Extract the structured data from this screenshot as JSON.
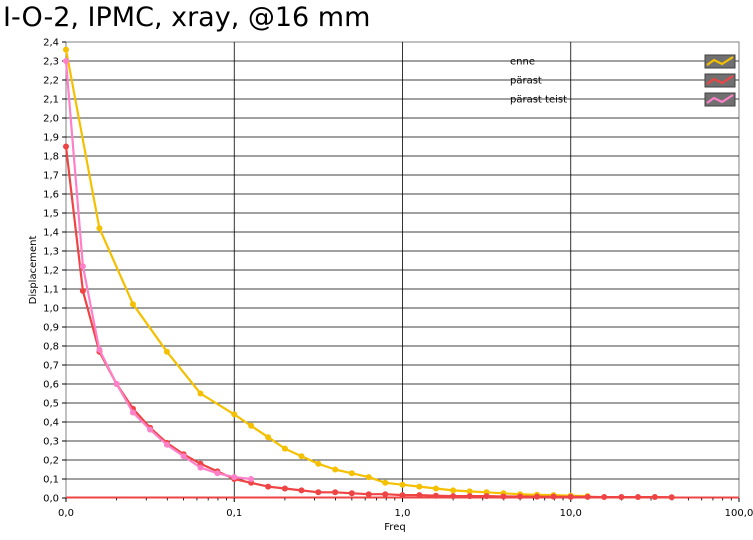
{
  "chart_data": {
    "type": "line",
    "title": "I-O-2, IPMC, xray, @16 mm",
    "xlabel": "Freq",
    "ylabel": "Displacement",
    "x_scale": "log",
    "xlim": [
      0.01,
      100
    ],
    "ylim": [
      0,
      2.4
    ],
    "grid": true,
    "legend_position": "top-right",
    "x_tick_labels": [
      "0,0",
      "0,1",
      "1,0",
      "10,0",
      "100,0"
    ],
    "y_tick_labels": [
      "0,0",
      "0,1",
      "0,2",
      "0,3",
      "0,4",
      "0,5",
      "0,6",
      "0,7",
      "0,8",
      "0,9",
      "1,0",
      "1,1",
      "1,2",
      "1,3",
      "1,4",
      "1,5",
      "1,6",
      "1,7",
      "1,8",
      "1,9",
      "2,0",
      "2,1",
      "2,2",
      "2,3",
      "2,4"
    ],
    "series": [
      {
        "name": "enne",
        "color": "#f5c000",
        "x": [
          0.01,
          0.0158,
          0.025,
          0.0398,
          0.063,
          0.1,
          0.126,
          0.159,
          0.2,
          0.251,
          0.316,
          0.398,
          0.5,
          0.63,
          0.79,
          1.0,
          1.26,
          1.58,
          2.0,
          2.51,
          3.16,
          3.98,
          5.0,
          6.3,
          7.9,
          10.0,
          12.6
        ],
        "y": [
          2.36,
          1.42,
          1.02,
          0.77,
          0.55,
          0.44,
          0.38,
          0.32,
          0.26,
          0.22,
          0.18,
          0.15,
          0.13,
          0.11,
          0.08,
          0.07,
          0.06,
          0.05,
          0.04,
          0.035,
          0.03,
          0.025,
          0.02,
          0.017,
          0.015,
          0.012,
          0.01
        ]
      },
      {
        "name": "pärast",
        "color": "#ee4444",
        "x": [
          0.01,
          0.0126,
          0.0158,
          0.02,
          0.025,
          0.0316,
          0.0398,
          0.05,
          0.063,
          0.0794,
          0.1,
          0.126,
          0.159,
          0.2,
          0.251,
          0.316,
          0.398,
          0.5,
          0.63,
          0.79,
          1.0,
          1.26,
          1.58,
          2.0,
          2.51,
          3.16,
          3.98,
          5.0,
          6.3,
          7.9,
          10.0,
          12.6,
          15.8,
          20.0,
          25.1,
          31.6,
          39.8
        ],
        "y": [
          1.85,
          1.09,
          0.77,
          0.6,
          0.47,
          0.37,
          0.29,
          0.23,
          0.18,
          0.14,
          0.1,
          0.08,
          0.06,
          0.05,
          0.04,
          0.03,
          0.03,
          0.025,
          0.02,
          0.02,
          0.015,
          0.015,
          0.012,
          0.01,
          0.01,
          0.01,
          0.008,
          0.008,
          0.007,
          0.007,
          0.006,
          0.006,
          0.005,
          0.005,
          0.005,
          0.005,
          0.004
        ]
      },
      {
        "name": "pärast teist",
        "color": "#ff80c8",
        "x": [
          0.01,
          0.0126,
          0.0158,
          0.02,
          0.025,
          0.0316,
          0.0398,
          0.05,
          0.063,
          0.0794,
          0.1,
          0.126
        ],
        "y": [
          2.3,
          1.22,
          0.78,
          0.6,
          0.45,
          0.36,
          0.28,
          0.22,
          0.16,
          0.13,
          0.11,
          0.1
        ]
      }
    ]
  }
}
